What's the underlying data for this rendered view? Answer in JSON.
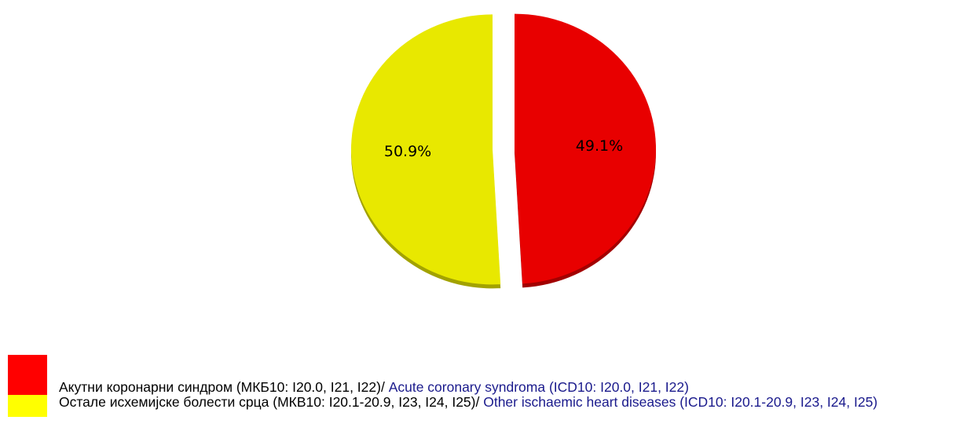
{
  "chart_data": {
    "type": "pie",
    "categories": [
      "Акутни коронарни синдром (МКБ10: I20.0, I21, I22)/ ",
      "Остале исхемијске болести срца (МКВ10: I20.1-20.9, I23, I24, I25)/ "
    ],
    "category_translations": [
      "Acute coronary syndroma (ICD10: I20.0, I21, I22)",
      "Other ischaemic heart diseases (ICD10: I20.1-20.9, I23, I24, I25)"
    ],
    "values": [
      49.1,
      50.9
    ],
    "value_labels": [
      "49.1%",
      "50.9%"
    ],
    "colors": [
      "#e80000",
      "#e8e800"
    ],
    "legend_colors": [
      "#ff0000",
      "#ffff00"
    ]
  }
}
